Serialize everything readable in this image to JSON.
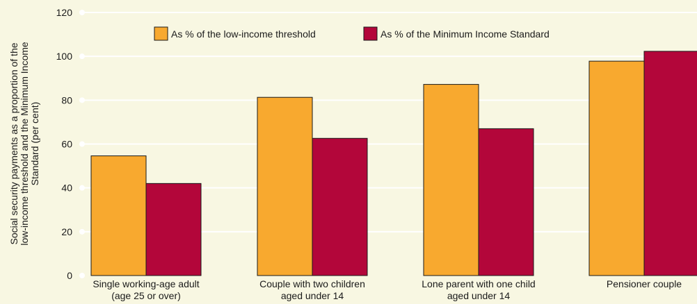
{
  "chart_data": {
    "type": "bar",
    "categories": [
      [
        "Single working-age adult",
        "(age 25 or over)"
      ],
      [
        "Couple with two children",
        "aged under 14"
      ],
      [
        "Lone parent with one child",
        "aged under 14"
      ],
      [
        "Pensioner couple"
      ]
    ],
    "series": [
      {
        "name": "As % of the low-income threshold",
        "color": "#f8a92f",
        "values": [
          54.6,
          81.3,
          87.2,
          97.8
        ]
      },
      {
        "name": "As % of the Minimum Income Standard",
        "color": "#b3063a",
        "values": [
          42.0,
          62.6,
          67.0,
          102.3
        ]
      }
    ],
    "ylabel": [
      "Social security payments as a proportion of the",
      "low-income threshold and the Minimum Income",
      "Standard (per cent)"
    ],
    "yticks": [
      0,
      20,
      40,
      60,
      80,
      100,
      120
    ],
    "ylim": [
      0,
      120
    ],
    "grid": true,
    "gridline_color": "#ffffff",
    "background": "#f8f7e2",
    "legend_position": "top"
  }
}
